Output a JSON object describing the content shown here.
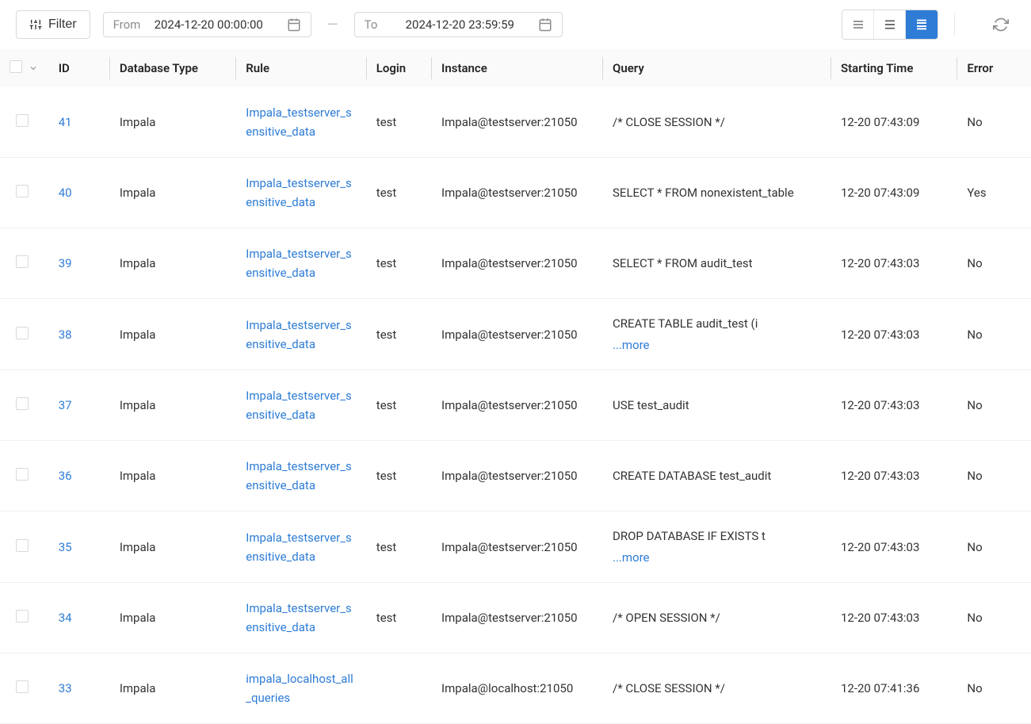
{
  "colors": {
    "link": "#2e7cd6",
    "border": "#d9d9d9",
    "header_bg": "#fafafa",
    "text": "#333333",
    "muted": "#8c8c8c",
    "active_bg": "#2e7cd6"
  },
  "toolbar": {
    "filter_label": "Filter",
    "from_label": "From",
    "from_value": "2024-12-20 00:00:00",
    "to_label": "To",
    "to_value": "2024-12-20 23:59:59"
  },
  "view_modes": {
    "compact": false,
    "medium": false,
    "comfortable": true
  },
  "columns": [
    "ID",
    "Database Type",
    "Rule",
    "Login",
    "Instance",
    "Query",
    "Starting Time",
    "Error"
  ],
  "more_label": "...more",
  "rows": [
    {
      "id": "41",
      "db_type": "Impala",
      "rule": "Impala_testserver_sensitive_data",
      "login": "test",
      "instance": "Impala@testserver:21050",
      "query": "/* CLOSE SESSION */",
      "query_more": false,
      "time": "12-20 07:43:09",
      "error": "No"
    },
    {
      "id": "40",
      "db_type": "Impala",
      "rule": "Impala_testserver_sensitive_data",
      "login": "test",
      "instance": "Impala@testserver:21050",
      "query": "SELECT * FROM nonexistent_table",
      "query_more": false,
      "time": "12-20 07:43:09",
      "error": "Yes"
    },
    {
      "id": "39",
      "db_type": "Impala",
      "rule": "Impala_testserver_sensitive_data",
      "login": "test",
      "instance": "Impala@testserver:21050",
      "query": "SELECT * FROM audit_test",
      "query_more": false,
      "time": "12-20 07:43:03",
      "error": "No"
    },
    {
      "id": "38",
      "db_type": "Impala",
      "rule": "Impala_testserver_sensitive_data",
      "login": "test",
      "instance": "Impala@testserver:21050",
      "query": "CREATE TABLE audit_test (i",
      "query_more": true,
      "time": "12-20 07:43:03",
      "error": "No"
    },
    {
      "id": "37",
      "db_type": "Impala",
      "rule": "Impala_testserver_sensitive_data",
      "login": "test",
      "instance": "Impala@testserver:21050",
      "query": "USE test_audit",
      "query_more": false,
      "time": "12-20 07:43:03",
      "error": "No"
    },
    {
      "id": "36",
      "db_type": "Impala",
      "rule": "Impala_testserver_sensitive_data",
      "login": "test",
      "instance": "Impala@testserver:21050",
      "query": "CREATE DATABASE test_audit",
      "query_more": false,
      "time": "12-20 07:43:03",
      "error": "No"
    },
    {
      "id": "35",
      "db_type": "Impala",
      "rule": "Impala_testserver_sensitive_data",
      "login": "test",
      "instance": "Impala@testserver:21050",
      "query": "DROP DATABASE IF EXISTS t",
      "query_more": true,
      "time": "12-20 07:43:03",
      "error": "No"
    },
    {
      "id": "34",
      "db_type": "Impala",
      "rule": "Impala_testserver_sensitive_data",
      "login": "test",
      "instance": "Impala@testserver:21050",
      "query": "/* OPEN SESSION */",
      "query_more": false,
      "time": "12-20 07:43:03",
      "error": "No"
    },
    {
      "id": "33",
      "db_type": "Impala",
      "rule": "impala_localhost_all_queries",
      "login": "",
      "instance": "Impala@localhost:21050",
      "query": "/* CLOSE SESSION */",
      "query_more": false,
      "time": "12-20 07:41:36",
      "error": "No"
    }
  ]
}
